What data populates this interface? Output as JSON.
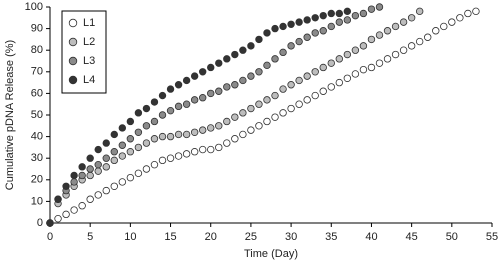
{
  "chart_data": {
    "type": "scatter",
    "x_label": "Time (Day)",
    "y_label": "Cumulative pDNA Release (%)",
    "xlim": [
      0,
      55
    ],
    "xticks": [
      0,
      5,
      10,
      15,
      20,
      25,
      30,
      35,
      40,
      45,
      50,
      55
    ],
    "ylim": [
      0,
      100
    ],
    "yticks": [
      0,
      10,
      20,
      30,
      40,
      50,
      60,
      70,
      80,
      90,
      100
    ],
    "grid": false,
    "legend": "upper left",
    "series": [
      {
        "name": "L1",
        "color": "#ffffff",
        "x": [
          0,
          1,
          2,
          3,
          4,
          5,
          6,
          7,
          8,
          9,
          10,
          11,
          12,
          13,
          14,
          15,
          16,
          17,
          18,
          19,
          20,
          21,
          22,
          23,
          24,
          25,
          26,
          27,
          28,
          29,
          30,
          31,
          32,
          33,
          34,
          35,
          36,
          37,
          38,
          39,
          40,
          41,
          42,
          43,
          44,
          45,
          46,
          47,
          48,
          49,
          50,
          51,
          52,
          53
        ],
        "values": [
          0,
          2,
          4,
          6,
          8,
          11,
          13,
          15,
          17,
          19,
          21,
          23,
          25,
          27,
          29,
          30,
          31,
          32,
          33,
          34,
          34,
          35,
          37,
          39,
          41,
          43,
          45,
          47,
          49,
          51,
          53,
          55,
          57,
          59,
          61,
          63,
          65,
          67,
          69,
          71,
          72,
          74,
          76,
          78,
          80,
          82,
          84,
          86,
          89,
          91,
          93,
          95,
          97,
          98
        ]
      },
      {
        "name": "L2",
        "color": "#bdbdbd",
        "x": [
          0,
          1,
          2,
          3,
          4,
          5,
          6,
          7,
          8,
          9,
          10,
          11,
          12,
          13,
          14,
          15,
          16,
          17,
          18,
          19,
          20,
          21,
          22,
          23,
          24,
          25,
          26,
          27,
          28,
          29,
          30,
          31,
          32,
          33,
          34,
          35,
          36,
          37,
          38,
          39,
          40,
          41,
          42,
          43,
          44,
          45,
          46
        ],
        "values": [
          0,
          9,
          13,
          17,
          20,
          22,
          24,
          26,
          29,
          31,
          33,
          35,
          37,
          39,
          40,
          40,
          41,
          41,
          42,
          43,
          44,
          45,
          47,
          49,
          51,
          53,
          55,
          57,
          59,
          62,
          64,
          66,
          68,
          70,
          72,
          74,
          76,
          78,
          80,
          82,
          85,
          87,
          89,
          91,
          93,
          95,
          98
        ]
      },
      {
        "name": "L3",
        "color": "#8a8a8a",
        "x": [
          0,
          1,
          2,
          3,
          4,
          5,
          6,
          7,
          8,
          9,
          10,
          11,
          12,
          13,
          14,
          15,
          16,
          17,
          18,
          19,
          20,
          21,
          22,
          23,
          24,
          25,
          26,
          27,
          28,
          29,
          30,
          31,
          32,
          33,
          34,
          35,
          36,
          37,
          38,
          39,
          40,
          41
        ],
        "values": [
          0,
          11,
          15,
          19,
          22,
          25,
          27,
          30,
          33,
          36,
          39,
          42,
          45,
          47,
          50,
          52,
          54,
          55,
          57,
          58,
          60,
          61,
          63,
          64,
          66,
          68,
          70,
          73,
          76,
          79,
          82,
          84,
          86,
          88,
          89,
          91,
          93,
          94,
          96,
          97,
          99,
          100
        ]
      },
      {
        "name": "L4",
        "color": "#333333",
        "x": [
          0,
          1,
          2,
          3,
          4,
          5,
          6,
          7,
          8,
          9,
          10,
          11,
          12,
          13,
          14,
          15,
          16,
          17,
          18,
          19,
          20,
          21,
          22,
          23,
          24,
          25,
          26,
          27,
          28,
          29,
          30,
          31,
          32,
          33,
          34,
          35,
          36,
          37
        ],
        "values": [
          0,
          11,
          17,
          22,
          26,
          30,
          34,
          37,
          41,
          44,
          47,
          51,
          53,
          56,
          59,
          62,
          64,
          66,
          68,
          70,
          72,
          74,
          76,
          78,
          80,
          82,
          85,
          88,
          90,
          91,
          92,
          93,
          94,
          95,
          96,
          97,
          97,
          98
        ]
      }
    ]
  }
}
